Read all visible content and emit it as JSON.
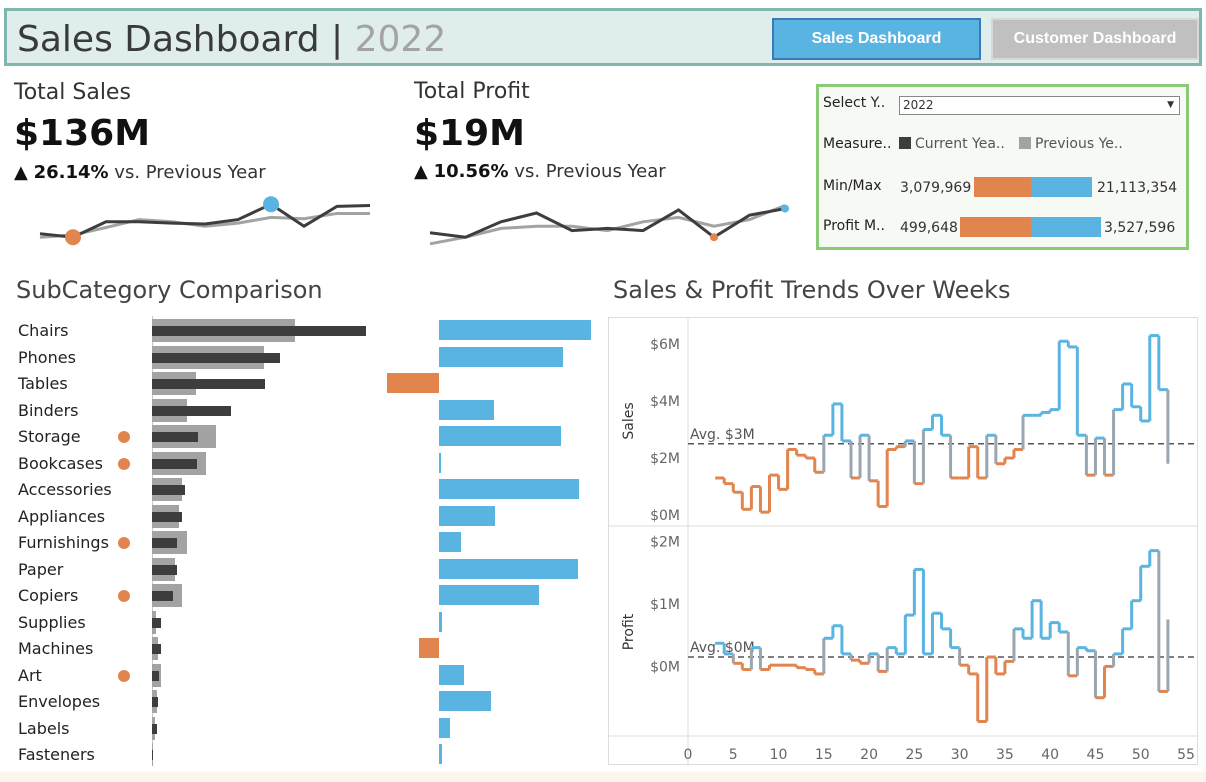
{
  "header": {
    "title": "Sales Dashboard",
    "separator": "|",
    "year": "2022",
    "nav_sales": "Sales Dashboard",
    "nav_customer": "Customer Dashboard"
  },
  "colors": {
    "blue": "#5ab4e2",
    "orange": "#e2844e",
    "dark": "#3d3d3d",
    "grey": "#a3a3a3",
    "header_bg": "#dfeeed",
    "filter_border": "#8acb78"
  },
  "kpis": {
    "sales": {
      "title": "Total Sales",
      "value": "$136M",
      "arrow": "▲",
      "delta": "26.14%",
      "vs": "vs. Previous Year",
      "current": [
        0.28,
        0.2,
        0.55,
        0.55,
        0.52,
        0.5,
        0.6,
        0.95,
        0.45,
        0.9,
        0.92
      ],
      "previous": [
        0.2,
        0.25,
        0.42,
        0.6,
        0.55,
        0.45,
        0.52,
        0.65,
        0.62,
        0.74,
        0.74
      ],
      "min_index": 1,
      "max_index": 7
    },
    "profit": {
      "title": "Total Profit",
      "value": "$19M",
      "arrow": "▲",
      "delta": "10.56%",
      "vs": "vs. Previous Year",
      "current": [
        0.3,
        0.2,
        0.55,
        0.75,
        0.35,
        0.4,
        0.35,
        0.82,
        0.2,
        0.7,
        0.85
      ],
      "previous": [
        0.05,
        0.2,
        0.4,
        0.45,
        0.45,
        0.35,
        0.55,
        0.65,
        0.45,
        0.6,
        0.92
      ],
      "min_index": 8,
      "max_index": 10
    }
  },
  "filters": {
    "select_year_label": "Select Y..",
    "select_year_value": "2022",
    "measure_label": "Measure..",
    "legend_current": "Current Yea..",
    "legend_previous": "Previous Ye..",
    "minmax_label": "Min/Max",
    "minmax_min": "3,079,969",
    "minmax_max": "21,113,354",
    "minmax_orange_fraction": 0.48,
    "profit_label": "Profit M..",
    "profit_min": "499,648",
    "profit_max": "3,527,596",
    "profit_orange_fraction": 0.5
  },
  "subcategory": {
    "title": "SubCategory Comparison",
    "rows": [
      {
        "name": "Chairs",
        "prev": 143,
        "cur": 214,
        "profit": 152,
        "dot": false
      },
      {
        "name": "Phones",
        "prev": 112,
        "cur": 128,
        "profit": 124,
        "dot": false
      },
      {
        "name": "Tables",
        "prev": 44,
        "cur": 113,
        "profit": -52,
        "dot": false
      },
      {
        "name": "Binders",
        "prev": 35,
        "cur": 79,
        "profit": 55,
        "dot": false
      },
      {
        "name": "Storage",
        "prev": 64,
        "cur": 46,
        "profit": 122,
        "dot": true
      },
      {
        "name": "Bookcases",
        "prev": 54,
        "cur": 45,
        "profit": 2,
        "dot": true
      },
      {
        "name": "Accessories",
        "prev": 30,
        "cur": 33,
        "profit": 140,
        "dot": false
      },
      {
        "name": "Appliances",
        "prev": 27,
        "cur": 30,
        "profit": 56,
        "dot": false
      },
      {
        "name": "Furnishings",
        "prev": 35,
        "cur": 25,
        "profit": 22,
        "dot": true
      },
      {
        "name": "Paper",
        "prev": 23,
        "cur": 25,
        "profit": 139,
        "dot": false
      },
      {
        "name": "Copiers",
        "prev": 30,
        "cur": 21,
        "profit": 100,
        "dot": true
      },
      {
        "name": "Supplies",
        "prev": 4,
        "cur": 9,
        "profit": 3,
        "dot": false
      },
      {
        "name": "Machines",
        "prev": 6,
        "cur": 9,
        "profit": -20,
        "dot": false
      },
      {
        "name": "Art",
        "prev": 9,
        "cur": 7,
        "profit": 25,
        "dot": true
      },
      {
        "name": "Envelopes",
        "prev": 5,
        "cur": 6,
        "profit": 52,
        "dot": false
      },
      {
        "name": "Labels",
        "prev": 3,
        "cur": 5,
        "profit": 11,
        "dot": false
      },
      {
        "name": "Fasteners",
        "prev": 1,
        "cur": 1,
        "profit": 3,
        "dot": false
      }
    ]
  },
  "trends": {
    "title": "Sales & Profit Trends Over Weeks",
    "sales_axis_label": "Sales",
    "profit_axis_label": "Profit",
    "sales_ticks": [
      "$0M",
      "$2M",
      "$4M",
      "$6M"
    ],
    "profit_ticks": [
      "$0M",
      "$1M",
      "$2M"
    ],
    "sales_avg_label": "Avg. $3M",
    "profit_avg_label": "Avg. $0M",
    "x_ticks": [
      "0",
      "5",
      "10",
      "15",
      "20",
      "25",
      "30",
      "35",
      "40",
      "45",
      "50",
      "55"
    ]
  },
  "chart_data": [
    {
      "type": "line",
      "title": "Sales & Profit Trends Over Weeks",
      "ylabel": "Sales",
      "x": [
        3,
        4,
        5,
        6,
        7,
        8,
        9,
        10,
        11,
        12,
        13,
        14,
        15,
        16,
        17,
        18,
        19,
        20,
        21,
        22,
        23,
        24,
        25,
        26,
        27,
        28,
        29,
        30,
        31,
        32,
        33,
        34,
        35,
        36,
        37,
        38,
        39,
        40,
        41,
        42,
        43,
        44,
        45,
        46,
        47,
        48,
        49,
        50,
        51,
        52,
        53
      ],
      "values": [
        1.3,
        1.1,
        0.8,
        0.2,
        1.0,
        0.1,
        1.4,
        0.9,
        2.3,
        2.1,
        2.0,
        1.5,
        2.8,
        3.9,
        2.6,
        1.3,
        2.8,
        1.2,
        0.3,
        2.3,
        2.4,
        2.6,
        1.1,
        3.0,
        3.5,
        2.8,
        1.3,
        1.3,
        2.4,
        1.3,
        2.8,
        1.8,
        2.0,
        2.3,
        3.5,
        3.5,
        3.6,
        3.7,
        6.1,
        5.9,
        2.8,
        1.4,
        2.7,
        1.4,
        3.7,
        4.6,
        3.8,
        3.3,
        6.3,
        4.4,
        1.8
      ],
      "ylim": [
        0,
        6.6
      ],
      "xlim": [
        0,
        55
      ],
      "average": 2.5
    },
    {
      "type": "line",
      "ylabel": "Profit",
      "x": [
        3,
        4,
        5,
        6,
        7,
        8,
        9,
        10,
        11,
        12,
        13,
        14,
        15,
        16,
        17,
        18,
        19,
        20,
        21,
        22,
        23,
        24,
        25,
        26,
        27,
        28,
        29,
        30,
        31,
        32,
        33,
        34,
        35,
        36,
        37,
        38,
        39,
        40,
        41,
        42,
        43,
        44,
        45,
        46,
        47,
        48,
        49,
        50,
        51,
        52,
        53
      ],
      "values": [
        0.37,
        0.2,
        0.05,
        -0.05,
        0.3,
        -0.05,
        0.02,
        0.02,
        0.02,
        -0.02,
        -0.05,
        -0.12,
        0.45,
        0.65,
        0.2,
        0.1,
        0.05,
        0.2,
        -0.08,
        0.3,
        0.2,
        0.82,
        1.55,
        0.2,
        0.85,
        0.6,
        0.3,
        0.02,
        -0.12,
        -0.88,
        0.15,
        -0.12,
        0.08,
        0.6,
        0.45,
        1.05,
        0.45,
        0.7,
        0.55,
        -0.15,
        0.3,
        0.25,
        -0.5,
        0.0,
        0.2,
        0.6,
        1.05,
        1.6,
        1.85,
        -0.4,
        0.75
      ],
      "ylim": [
        -1.0,
        2.1
      ],
      "xlim": [
        0,
        55
      ],
      "average": 0.15
    }
  ]
}
